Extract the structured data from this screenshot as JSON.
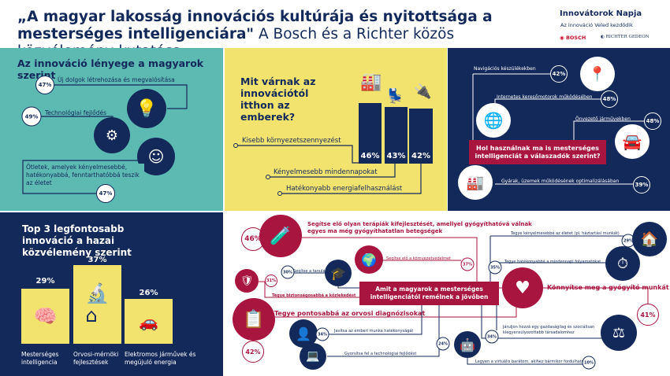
{
  "header": {
    "title_bold": "„A magyar lakosság innovációs kultúrája és nyitottsága a mesterséges intelligenciára\"",
    "title_rest": "A Bosch és a Richter közös közvélemény-kutatása",
    "brand_name": "Innovátorok Napja",
    "brand_tagline": "Az innováció Veled kezdődik",
    "logo_bosch": "BOSCH",
    "logo_richter": "Richter Gedeon"
  },
  "colors": {
    "teal": "#5cbab2",
    "yellow": "#f2e36f",
    "navy": "#13295a",
    "crimson": "#a8153e"
  },
  "essence": {
    "title": "Az innováció lényege a magyarok szerint",
    "items": [
      {
        "pct": "47%",
        "label": "Új dolgok létrehozása és megvalósítása",
        "icon": "lightbulb-hands-icon"
      },
      {
        "pct": "49%",
        "label": "Technológiai fejlődés",
        "icon": "laptop-gear-icon"
      },
      {
        "pct": "47%",
        "label": "Ötletek, amelyek kényelmesebbé, hatékonyabbá, fenntarthatóbbá teszik az életet",
        "icon": "person-gear-icon"
      }
    ]
  },
  "expectations": {
    "title": "Mit várnak az innovációtól itthon az emberek?",
    "items": [
      {
        "pct": "46%",
        "value": 46,
        "label": "Kisebb környezetszennyezést",
        "icon": "factory-icon"
      },
      {
        "pct": "43%",
        "value": 43,
        "label": "Kényelmesebb mindennapokat",
        "icon": "armchair-icon"
      },
      {
        "pct": "42%",
        "value": 42,
        "label": "Hatékonyabb energiafelhasználást",
        "icon": "plug-leaf-icon"
      }
    ]
  },
  "ai_use": {
    "title": "Hol használnak ma is mesterséges intelligenciát a válaszadók szerint?",
    "items": [
      {
        "pct": "42%",
        "label": "Navigációs készülékekben",
        "icon": "route-icon"
      },
      {
        "pct": "48%",
        "label": "Internetes keresőmotorok működésében",
        "icon": "globe-search-icon"
      },
      {
        "pct": "48%",
        "label": "Önvezető járművekben",
        "icon": "car-icon"
      },
      {
        "pct": "39%",
        "label": "Gyárak, üzemek működésének optimalizálásában",
        "icon": "factory-cycle-icon"
      }
    ]
  },
  "top3": {
    "title": "Top 3 legfontosabb innováció a hazai közvélemény szerint",
    "items": [
      {
        "pct": "29%",
        "value": 29,
        "label": "Mesterséges intelligencia",
        "icon": "ai-chip-icon"
      },
      {
        "pct": "37%",
        "value": 37,
        "label": "Orvosi-mérnöki fejlesztések",
        "icon": "microscope-icon"
      },
      {
        "pct": "26%",
        "value": 26,
        "label": "Elektromos járművek és megújuló energia",
        "icon": "ev-icon"
      }
    ]
  },
  "hopes": {
    "title": "Amit a magyarok a mesterséges intelligenciától remélnek a jövőben",
    "therapies": {
      "pct": "46%",
      "label": "Segítse elő olyan terápiák kifejlesztését, amellyel gyógyíthatóvá válnak egyes ma még gyógyíthatatlan betegségek"
    },
    "environment": {
      "pct": "37%",
      "label": "Segítse elő a környezetvédelmet"
    },
    "learning": {
      "pct": "30%",
      "label": "Segítse a tanulást"
    },
    "traffic": {
      "pct": "31%",
      "label": "Tegye biztonságosabbá a közlekedést"
    },
    "diagnosis": {
      "pct": "42%",
      "label": "Tegye pontosabbá az orvosi diagnózisokat"
    },
    "work": {
      "pct": "34%",
      "label": "Javítsa az emberi munka hatékonyságát"
    },
    "tech": {
      "pct": "24%",
      "label": "Gyorsítsa fel a technológiai fejlődést"
    },
    "comfort": {
      "pct": "29%",
      "label": "Tegye kényelmesebbé az életet (pl. háztartási munkát)"
    },
    "efficiency": {
      "pct": "35%",
      "label": "Tegye hatékonyabbá a mindennapi folyamatokat"
    },
    "healing": {
      "pct": "41%",
      "label": "Könnyítse meg a gyógyító munkát"
    },
    "society": {
      "pct": "34%",
      "label": "Járuljon hozzá egy gazdaságilag és szociálisan kiegyensúlyozottabb társadalomhoz"
    },
    "friend": {
      "pct": "10%",
      "label": "Legyen a virtuális barátom, akihez bármikor fordulhatok"
    }
  }
}
